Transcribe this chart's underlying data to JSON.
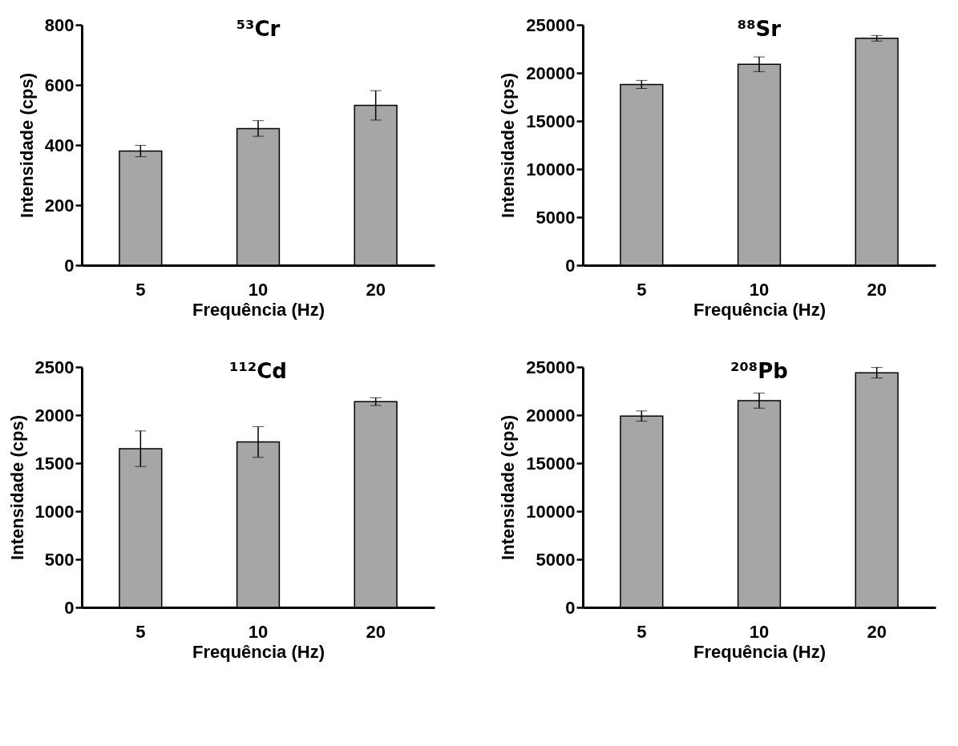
{
  "chart_data": [
    {
      "type": "bar",
      "title": "⁵³Cr",
      "xlabel": "Frequência (Hz)",
      "ylabel": "Intensidade (cps)",
      "categories": [
        "5",
        "10",
        "20"
      ],
      "values": [
        380,
        455,
        532
      ],
      "errors": [
        19,
        26,
        49
      ],
      "color": "#a6a6a6",
      "ylim": [
        0,
        800
      ],
      "yticks": [
        0,
        200,
        400,
        600,
        800
      ]
    },
    {
      "type": "bar",
      "title": "⁸⁸Sr",
      "xlabel": "Frequência (Hz)",
      "ylabel": "Intensidade (cps)",
      "categories": [
        "5",
        "10",
        "20"
      ],
      "values": [
        18800,
        20900,
        23600
      ],
      "errors": [
        420,
        760,
        290
      ],
      "color": "#a6a6a6",
      "ylim": [
        0,
        25000
      ],
      "yticks": [
        0,
        5000,
        10000,
        15000,
        20000,
        25000
      ]
    },
    {
      "type": "bar",
      "title": "¹¹²Cd",
      "xlabel": "Frequência (Hz)",
      "ylabel": "Intensidade (cps)",
      "categories": [
        "5",
        "10",
        "20"
      ],
      "values": [
        1650,
        1720,
        2140
      ],
      "errors": [
        185,
        160,
        40
      ],
      "color": "#a6a6a6",
      "ylim": [
        0,
        2500
      ],
      "yticks": [
        0,
        500,
        1000,
        1500,
        2000,
        2500
      ]
    },
    {
      "type": "bar",
      "title": "²⁰⁸Pb",
      "xlabel": "Frequência (Hz)",
      "ylabel": "Intensidade (cps)",
      "categories": [
        "5",
        "10",
        "20"
      ],
      "values": [
        19900,
        21500,
        24400
      ],
      "errors": [
        530,
        780,
        550
      ],
      "color": "#a6a6a6",
      "ylim": [
        0,
        25000
      ],
      "yticks": [
        0,
        5000,
        10000,
        15000,
        20000,
        25000
      ]
    }
  ]
}
